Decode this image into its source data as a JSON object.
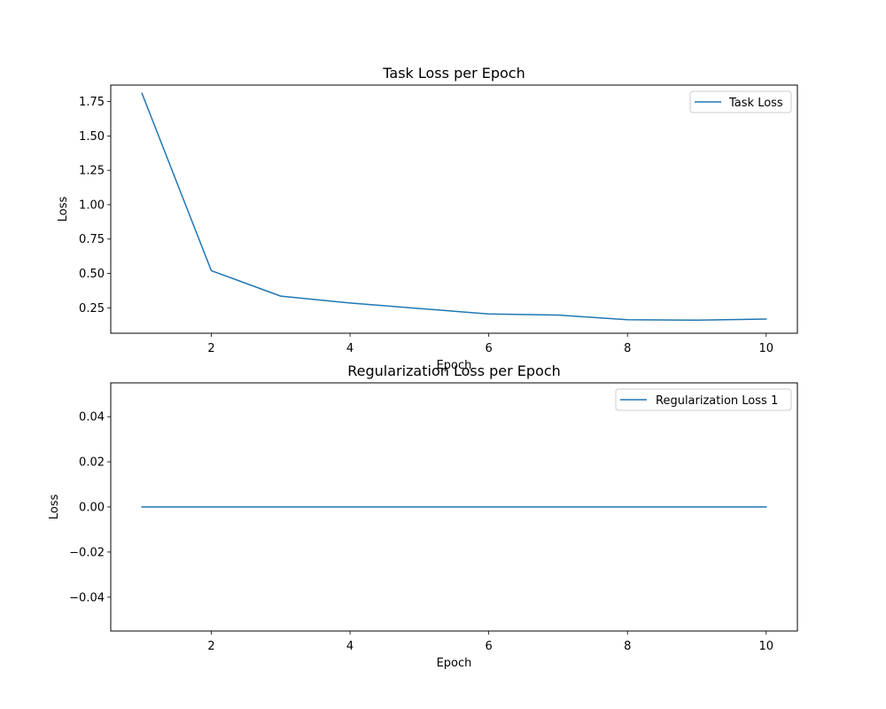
{
  "chart_data": [
    {
      "type": "line",
      "title": "Task Loss per Epoch",
      "xlabel": "Epoch",
      "ylabel": "Loss",
      "xlim": [
        0.55,
        10.45
      ],
      "ylim": [
        0.065,
        1.87
      ],
      "xticks": [
        2,
        4,
        6,
        8,
        10
      ],
      "yticks": [
        0.25,
        0.5,
        0.75,
        1.0,
        1.25,
        1.5,
        1.75
      ],
      "ytick_labels": [
        "0.25",
        "0.50",
        "0.75",
        "1.00",
        "1.25",
        "1.50",
        "1.75"
      ],
      "grid": false,
      "legend_position": "top-right",
      "series": [
        {
          "name": "Task Loss",
          "color": "#1f77b4",
          "x": [
            1,
            2,
            3,
            4,
            5,
            6,
            7,
            8,
            9,
            10
          ],
          "y": [
            1.81,
            0.52,
            0.335,
            0.285,
            0.245,
            0.205,
            0.197,
            0.163,
            0.16,
            0.168
          ]
        }
      ]
    },
    {
      "type": "line",
      "title": "Regularization Loss per Epoch",
      "xlabel": "Epoch",
      "ylabel": "Loss",
      "xlim": [
        0.55,
        10.45
      ],
      "ylim": [
        -0.055,
        0.055
      ],
      "xticks": [
        2,
        4,
        6,
        8,
        10
      ],
      "yticks": [
        -0.04,
        -0.02,
        0.0,
        0.02,
        0.04
      ],
      "ytick_labels": [
        "−0.04",
        "−0.02",
        "0.00",
        "0.02",
        "0.04"
      ],
      "grid": false,
      "legend_position": "top-right",
      "series": [
        {
          "name": "Regularization Loss 1",
          "color": "#1f77b4",
          "x": [
            1,
            2,
            3,
            4,
            5,
            6,
            7,
            8,
            9,
            10
          ],
          "y": [
            0,
            0,
            0,
            0,
            0,
            0,
            0,
            0,
            0,
            0
          ]
        }
      ]
    }
  ]
}
